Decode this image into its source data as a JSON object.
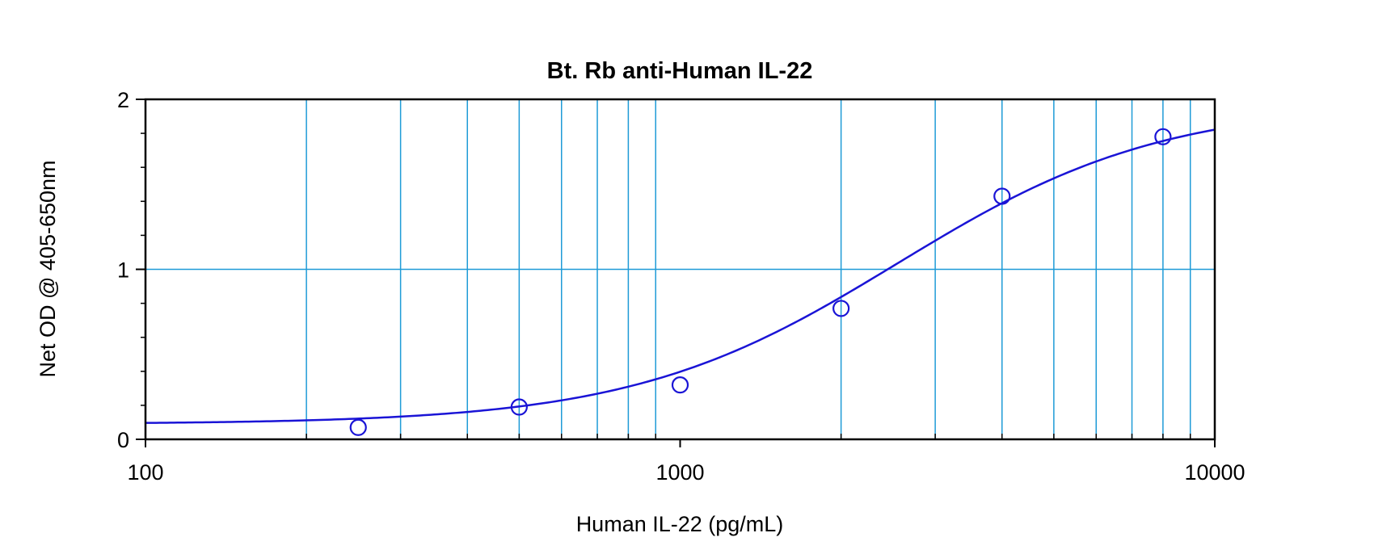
{
  "chart_data": {
    "type": "scatter",
    "title": "Bt. Rb anti-Human IL-22",
    "xlabel": "Human IL-22 (pg/mL)",
    "ylabel": "Net OD @ 405-650nm",
    "x_scale": "log",
    "xlim": [
      100,
      10000
    ],
    "ylim": [
      0,
      2
    ],
    "x_ticks": [
      {
        "value": 100,
        "label": "100"
      },
      {
        "value": 1000,
        "label": "1000"
      },
      {
        "value": 10000,
        "label": "10000"
      }
    ],
    "y_ticks": [
      {
        "value": 0,
        "label": "0"
      },
      {
        "value": 1,
        "label": "1"
      },
      {
        "value": 2,
        "label": "2"
      }
    ],
    "grid": true,
    "points": [
      {
        "x": 250,
        "y": 0.07
      },
      {
        "x": 500,
        "y": 0.19
      },
      {
        "x": 1000,
        "y": 0.32
      },
      {
        "x": 2000,
        "y": 0.77
      },
      {
        "x": 4000,
        "y": 1.43
      },
      {
        "x": 8000,
        "y": 1.78
      }
    ],
    "fit_curve": {
      "type": "4PL",
      "bottom": 0.09,
      "top": 1.98,
      "ec50": 2550,
      "hill": 1.75
    },
    "colors": {
      "series": "#1a14d6",
      "grid": "#1e9bd7",
      "axes": "#000000"
    }
  }
}
